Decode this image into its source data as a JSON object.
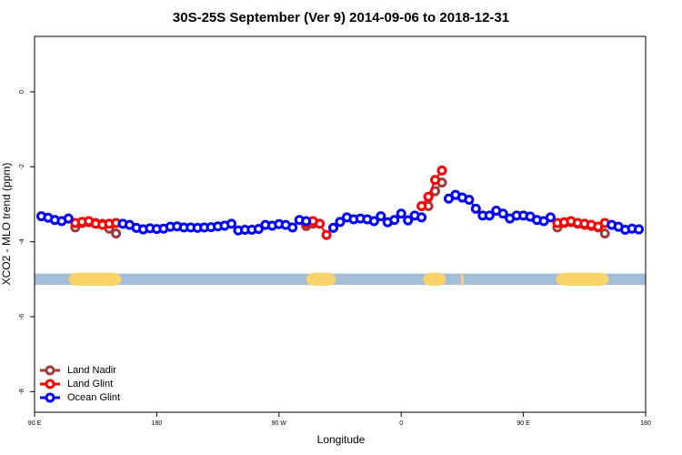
{
  "chart_data": {
    "type": "line",
    "title": "30S-25S September (Ver 9)   2014-09-06 to 2018-12-31",
    "xlabel": "Longitude",
    "ylabel": "XCO2 - MLO trend (ppm)",
    "xlim": [
      90,
      540
    ],
    "ylim": [
      -8.55,
      1.48
    ],
    "xticks": [
      {
        "value": 90,
        "label": "90 E"
      },
      180,
      {
        "value": 270,
        "label": "90 W"
      },
      {
        "value": 360,
        "label": "0"
      },
      {
        "value": 450,
        "label": "90 E"
      },
      {
        "value": 540,
        "label": "180"
      }
    ],
    "yticks": [
      0,
      -2,
      -4,
      -6,
      -8
    ],
    "legend_position": "bottom-left",
    "band_range": [
      -4.85,
      -5.15
    ],
    "band_color": "#a3bcd8",
    "land_color": "#fad46a",
    "land_segments": [
      [
        115,
        154
      ],
      [
        290,
        312
      ],
      [
        376,
        393
      ],
      [
        404,
        406
      ],
      [
        474,
        513
      ]
    ],
    "x": [
      95,
      100,
      105,
      110,
      115,
      120,
      125,
      130,
      135,
      140,
      145,
      150,
      155,
      160,
      165,
      170,
      175,
      180,
      185,
      190,
      195,
      200,
      205,
      210,
      215,
      220,
      225,
      230,
      235,
      240,
      245,
      250,
      255,
      260,
      265,
      270,
      275,
      280,
      285,
      290,
      295,
      300,
      305,
      310,
      315,
      320,
      325,
      330,
      335,
      340,
      345,
      350,
      355,
      360,
      365,
      370,
      375,
      380,
      385,
      390,
      395,
      400,
      405,
      410,
      415,
      420,
      425,
      430,
      435,
      440,
      445,
      450,
      455,
      460,
      465,
      470,
      475,
      480,
      485,
      490,
      495,
      500,
      505,
      510,
      515,
      520,
      525,
      530,
      535
    ],
    "series": [
      {
        "name": "Land Nadir",
        "color": "#a33a3a",
        "values": [
          null,
          null,
          null,
          null,
          null,
          -3.62,
          -3.5,
          -3.48,
          -3.5,
          -3.52,
          -3.65,
          -3.78,
          null,
          null,
          null,
          null,
          null,
          null,
          null,
          null,
          null,
          null,
          null,
          null,
          null,
          null,
          null,
          null,
          null,
          null,
          null,
          null,
          null,
          null,
          null,
          null,
          null,
          null,
          null,
          -3.58,
          -3.52,
          null,
          null,
          null,
          null,
          null,
          null,
          null,
          null,
          null,
          null,
          null,
          null,
          null,
          null,
          null,
          null,
          -3.05,
          -2.65,
          -2.42,
          null,
          null,
          null,
          null,
          null,
          null,
          null,
          null,
          null,
          null,
          null,
          null,
          null,
          null,
          null,
          null,
          -3.62,
          -3.5,
          -3.48,
          -3.52,
          -3.55,
          -3.58,
          -3.62,
          -3.78,
          null,
          null,
          null,
          null,
          null
        ]
      },
      {
        "name": "Land Glint",
        "color": "#ff0000",
        "values": [
          null,
          null,
          null,
          null,
          null,
          -3.5,
          -3.47,
          -3.45,
          -3.52,
          -3.55,
          -3.52,
          -3.5,
          null,
          null,
          null,
          null,
          null,
          null,
          null,
          null,
          null,
          null,
          null,
          null,
          null,
          null,
          null,
          null,
          null,
          null,
          null,
          null,
          null,
          null,
          null,
          null,
          null,
          null,
          null,
          -3.5,
          -3.45,
          -3.52,
          -3.82,
          null,
          null,
          null,
          null,
          null,
          null,
          null,
          null,
          null,
          null,
          null,
          null,
          null,
          -3.05,
          -2.8,
          -2.35,
          -2.1,
          null,
          null,
          null,
          null,
          null,
          null,
          null,
          null,
          null,
          null,
          null,
          null,
          null,
          null,
          null,
          null,
          -3.5,
          -3.48,
          -3.45,
          -3.5,
          -3.52,
          -3.55,
          -3.6,
          -3.5,
          null,
          null,
          null,
          null,
          null
        ]
      },
      {
        "name": "Ocean Glint",
        "color": "#0000ff",
        "values": [
          -3.32,
          -3.36,
          -3.42,
          -3.45,
          -3.38,
          null,
          null,
          null,
          null,
          null,
          null,
          null,
          -3.52,
          -3.55,
          -3.63,
          -3.67,
          -3.64,
          -3.66,
          -3.65,
          -3.6,
          -3.59,
          -3.62,
          -3.62,
          -3.63,
          -3.62,
          -3.61,
          -3.59,
          -3.57,
          -3.52,
          -3.7,
          -3.68,
          -3.68,
          -3.66,
          -3.55,
          -3.57,
          -3.53,
          -3.55,
          -3.62,
          -3.42,
          -3.45,
          null,
          null,
          null,
          -3.63,
          -3.47,
          -3.35,
          -3.4,
          -3.38,
          -3.4,
          -3.45,
          -3.32,
          -3.48,
          -3.42,
          -3.25,
          -3.43,
          -3.3,
          -3.35,
          null,
          null,
          null,
          -2.85,
          -2.75,
          -2.82,
          -2.88,
          -3.12,
          -3.3,
          -3.3,
          -3.17,
          -3.25,
          -3.38,
          -3.3,
          -3.3,
          -3.33,
          -3.42,
          -3.45,
          -3.35,
          null,
          null,
          null,
          null,
          null,
          null,
          null,
          null,
          -3.55,
          -3.6,
          -3.68,
          -3.65,
          -3.67
        ]
      }
    ]
  }
}
